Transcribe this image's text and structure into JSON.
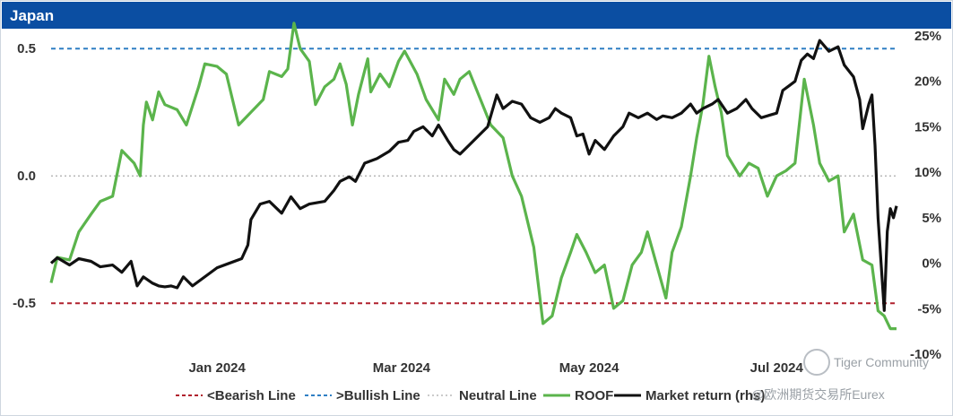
{
  "header": {
    "title": "Japan"
  },
  "colors": {
    "header_bg": "#0b4ea2",
    "roof": "#5bb44c",
    "market": "#111111",
    "bearish": "#b0202d",
    "bullish": "#2f7fc4",
    "neutral": "#b8b8b8"
  },
  "watermark": {
    "community": "Tiger Community",
    "source": "@欧洲期货交易所Eurex"
  },
  "chart_data": {
    "type": "line",
    "x_tick_labels": [
      "Jan 2024",
      "Mar 2024",
      "May 2024",
      "Jul 2024"
    ],
    "x_tick_dates": [
      "2024-01-01",
      "2024-03-01",
      "2024-05-01",
      "2024-07-01"
    ],
    "x_range": [
      "2023-11-08",
      "2024-08-09"
    ],
    "y_left": {
      "ticks": [
        "0.5",
        "0.0",
        "-0.5"
      ],
      "values": [
        0.5,
        0.0,
        -0.5
      ],
      "range": [
        -0.7,
        0.55
      ]
    },
    "y_right": {
      "ticks": [
        "25%",
        "20%",
        "15%",
        "10%",
        "5%",
        "0%",
        "-5%",
        "-10%"
      ],
      "values": [
        25,
        20,
        15,
        10,
        5,
        0,
        -5,
        -10
      ],
      "range": [
        -10,
        25
      ]
    },
    "reference_lines": [
      {
        "name": "<Bearish Line",
        "value": -0.5,
        "style": "dashed"
      },
      {
        "name": ">Bullish Line",
        "value": 0.5,
        "style": "dashed"
      },
      {
        "name": "Neutral Line",
        "value": 0.0,
        "style": "dotted"
      }
    ],
    "legend": [
      "<Bearish Line",
      ">Bullish Line",
      "Neutral Line",
      "ROOF",
      "Market return (rhs)"
    ],
    "legend_position": "bottom",
    "series": [
      {
        "name": "ROOF",
        "axis": "left",
        "points": [
          [
            "2023-11-08",
            -0.42
          ],
          [
            "2023-11-10",
            -0.32
          ],
          [
            "2023-11-14",
            -0.33
          ],
          [
            "2023-11-17",
            -0.22
          ],
          [
            "2023-11-21",
            -0.15
          ],
          [
            "2023-11-24",
            -0.1
          ],
          [
            "2023-11-28",
            -0.08
          ],
          [
            "2023-12-01",
            0.1
          ],
          [
            "2023-12-05",
            0.05
          ],
          [
            "2023-12-07",
            0.0
          ],
          [
            "2023-12-08",
            0.2
          ],
          [
            "2023-12-09",
            0.29
          ],
          [
            "2023-12-11",
            0.22
          ],
          [
            "2023-12-13",
            0.33
          ],
          [
            "2023-12-15",
            0.28
          ],
          [
            "2023-12-19",
            0.26
          ],
          [
            "2023-12-22",
            0.2
          ],
          [
            "2023-12-26",
            0.35
          ],
          [
            "2023-12-28",
            0.44
          ],
          [
            "2024-01-01",
            0.43
          ],
          [
            "2024-01-04",
            0.4
          ],
          [
            "2024-01-08",
            0.2
          ],
          [
            "2024-01-12",
            0.25
          ],
          [
            "2024-01-16",
            0.3
          ],
          [
            "2024-01-18",
            0.41
          ],
          [
            "2024-01-22",
            0.39
          ],
          [
            "2024-01-24",
            0.42
          ],
          [
            "2024-01-26",
            0.6
          ],
          [
            "2024-01-28",
            0.5
          ],
          [
            "2024-01-31",
            0.45
          ],
          [
            "2024-02-02",
            0.28
          ],
          [
            "2024-02-05",
            0.35
          ],
          [
            "2024-02-08",
            0.38
          ],
          [
            "2024-02-10",
            0.44
          ],
          [
            "2024-02-12",
            0.36
          ],
          [
            "2024-02-14",
            0.2
          ],
          [
            "2024-02-16",
            0.32
          ],
          [
            "2024-02-19",
            0.46
          ],
          [
            "2024-02-20",
            0.33
          ],
          [
            "2024-02-23",
            0.4
          ],
          [
            "2024-02-26",
            0.35
          ],
          [
            "2024-02-29",
            0.45
          ],
          [
            "2024-03-02",
            0.49
          ],
          [
            "2024-03-06",
            0.4
          ],
          [
            "2024-03-09",
            0.3
          ],
          [
            "2024-03-13",
            0.22
          ],
          [
            "2024-03-15",
            0.38
          ],
          [
            "2024-03-18",
            0.32
          ],
          [
            "2024-03-20",
            0.38
          ],
          [
            "2024-03-23",
            0.41
          ],
          [
            "2024-03-27",
            0.29
          ],
          [
            "2024-03-30",
            0.2
          ],
          [
            "2024-04-03",
            0.15
          ],
          [
            "2024-04-06",
            0.0
          ],
          [
            "2024-04-09",
            -0.08
          ],
          [
            "2024-04-13",
            -0.28
          ],
          [
            "2024-04-16",
            -0.58
          ],
          [
            "2024-04-19",
            -0.55
          ],
          [
            "2024-04-22",
            -0.4
          ],
          [
            "2024-04-25",
            -0.3
          ],
          [
            "2024-04-27",
            -0.23
          ],
          [
            "2024-04-30",
            -0.3
          ],
          [
            "2024-05-03",
            -0.38
          ],
          [
            "2024-05-06",
            -0.35
          ],
          [
            "2024-05-09",
            -0.52
          ],
          [
            "2024-05-12",
            -0.49
          ],
          [
            "2024-05-15",
            -0.35
          ],
          [
            "2024-05-18",
            -0.3
          ],
          [
            "2024-05-20",
            -0.22
          ],
          [
            "2024-05-23",
            -0.35
          ],
          [
            "2024-05-26",
            -0.48
          ],
          [
            "2024-05-28",
            -0.3
          ],
          [
            "2024-05-31",
            -0.2
          ],
          [
            "2024-06-03",
            0.0
          ],
          [
            "2024-06-05",
            0.15
          ],
          [
            "2024-06-07",
            0.28
          ],
          [
            "2024-06-09",
            0.47
          ],
          [
            "2024-06-11",
            0.35
          ],
          [
            "2024-06-13",
            0.25
          ],
          [
            "2024-06-15",
            0.08
          ],
          [
            "2024-06-19",
            0.0
          ],
          [
            "2024-06-22",
            0.05
          ],
          [
            "2024-06-25",
            0.03
          ],
          [
            "2024-06-28",
            -0.08
          ],
          [
            "2024-07-01",
            0.0
          ],
          [
            "2024-07-04",
            0.02
          ],
          [
            "2024-07-07",
            0.05
          ],
          [
            "2024-07-10",
            0.38
          ],
          [
            "2024-07-13",
            0.2
          ],
          [
            "2024-07-15",
            0.05
          ],
          [
            "2024-07-18",
            -0.02
          ],
          [
            "2024-07-21",
            0.0
          ],
          [
            "2024-07-23",
            -0.22
          ],
          [
            "2024-07-26",
            -0.15
          ],
          [
            "2024-07-29",
            -0.33
          ],
          [
            "2024-08-01",
            -0.35
          ],
          [
            "2024-08-03",
            -0.53
          ],
          [
            "2024-08-05",
            -0.55
          ],
          [
            "2024-08-07",
            -0.6
          ],
          [
            "2024-08-09",
            -0.6
          ]
        ]
      },
      {
        "name": "Market return (rhs)",
        "axis": "right",
        "points": [
          [
            "2023-11-08",
            0.0
          ],
          [
            "2023-11-10",
            0.6
          ],
          [
            "2023-11-14",
            -0.2
          ],
          [
            "2023-11-17",
            0.5
          ],
          [
            "2023-11-21",
            0.2
          ],
          [
            "2023-11-24",
            -0.4
          ],
          [
            "2023-11-28",
            -0.2
          ],
          [
            "2023-12-01",
            -1.0
          ],
          [
            "2023-12-04",
            0.2
          ],
          [
            "2023-12-06",
            -2.5
          ],
          [
            "2023-12-08",
            -1.5
          ],
          [
            "2023-12-11",
            -2.2
          ],
          [
            "2023-12-13",
            -2.5
          ],
          [
            "2023-12-15",
            -2.6
          ],
          [
            "2023-12-17",
            -2.5
          ],
          [
            "2023-12-19",
            -2.7
          ],
          [
            "2023-12-21",
            -1.5
          ],
          [
            "2023-12-24",
            -2.5
          ],
          [
            "2024-01-01",
            -0.5
          ],
          [
            "2024-01-09",
            0.5
          ],
          [
            "2024-01-11",
            2.0
          ],
          [
            "2024-01-12",
            4.8
          ],
          [
            "2024-01-15",
            6.5
          ],
          [
            "2024-01-18",
            6.8
          ],
          [
            "2024-01-22",
            5.5
          ],
          [
            "2024-01-25",
            7.3
          ],
          [
            "2024-01-28",
            6.0
          ],
          [
            "2024-01-31",
            6.5
          ],
          [
            "2024-02-05",
            6.8
          ],
          [
            "2024-02-08",
            8.0
          ],
          [
            "2024-02-10",
            9.0
          ],
          [
            "2024-02-13",
            9.5
          ],
          [
            "2024-02-15",
            9.0
          ],
          [
            "2024-02-18",
            11.0
          ],
          [
            "2024-02-22",
            11.5
          ],
          [
            "2024-02-26",
            12.3
          ],
          [
            "2024-02-29",
            13.3
          ],
          [
            "2024-03-03",
            13.5
          ],
          [
            "2024-03-05",
            14.5
          ],
          [
            "2024-03-08",
            15.0
          ],
          [
            "2024-03-11",
            14.0
          ],
          [
            "2024-03-13",
            15.2
          ],
          [
            "2024-03-16",
            13.5
          ],
          [
            "2024-03-18",
            12.5
          ],
          [
            "2024-03-20",
            12.0
          ],
          [
            "2024-03-23",
            13.0
          ],
          [
            "2024-03-26",
            14.0
          ],
          [
            "2024-03-29",
            15.0
          ],
          [
            "2024-04-01",
            18.5
          ],
          [
            "2024-04-03",
            17.0
          ],
          [
            "2024-04-06",
            17.8
          ],
          [
            "2024-04-09",
            17.5
          ],
          [
            "2024-04-12",
            16.0
          ],
          [
            "2024-04-15",
            15.5
          ],
          [
            "2024-04-18",
            16.0
          ],
          [
            "2024-04-20",
            17.0
          ],
          [
            "2024-04-22",
            16.5
          ],
          [
            "2024-04-25",
            16.0
          ],
          [
            "2024-04-27",
            14.0
          ],
          [
            "2024-04-29",
            14.2
          ],
          [
            "2024-05-01",
            12.0
          ],
          [
            "2024-05-03",
            13.5
          ],
          [
            "2024-05-06",
            12.5
          ],
          [
            "2024-05-09",
            14.0
          ],
          [
            "2024-05-12",
            15.0
          ],
          [
            "2024-05-14",
            16.5
          ],
          [
            "2024-05-17",
            16.0
          ],
          [
            "2024-05-20",
            16.5
          ],
          [
            "2024-05-23",
            15.8
          ],
          [
            "2024-05-25",
            16.2
          ],
          [
            "2024-05-28",
            16.0
          ],
          [
            "2024-05-31",
            16.5
          ],
          [
            "2024-06-03",
            17.5
          ],
          [
            "2024-06-05",
            16.5
          ],
          [
            "2024-06-07",
            17.0
          ],
          [
            "2024-06-10",
            17.5
          ],
          [
            "2024-06-12",
            18.0
          ],
          [
            "2024-06-15",
            16.5
          ],
          [
            "2024-06-18",
            17.0
          ],
          [
            "2024-06-21",
            18.0
          ],
          [
            "2024-06-23",
            17.0
          ],
          [
            "2024-06-26",
            16.0
          ],
          [
            "2024-06-29",
            16.3
          ],
          [
            "2024-07-01",
            16.5
          ],
          [
            "2024-07-03",
            19.0
          ],
          [
            "2024-07-05",
            19.5
          ],
          [
            "2024-07-07",
            20.0
          ],
          [
            "2024-07-09",
            22.3
          ],
          [
            "2024-07-11",
            23.0
          ],
          [
            "2024-07-13",
            22.5
          ],
          [
            "2024-07-15",
            24.5
          ],
          [
            "2024-07-18",
            23.3
          ],
          [
            "2024-07-21",
            23.8
          ],
          [
            "2024-07-23",
            21.8
          ],
          [
            "2024-07-26",
            20.5
          ],
          [
            "2024-07-28",
            18.0
          ],
          [
            "2024-07-29",
            14.8
          ],
          [
            "2024-07-31",
            17.5
          ],
          [
            "2024-08-01",
            18.5
          ],
          [
            "2024-08-02",
            13.0
          ],
          [
            "2024-08-03",
            5.0
          ],
          [
            "2024-08-05",
            -5.2
          ],
          [
            "2024-08-06",
            3.5
          ],
          [
            "2024-08-07",
            6.0
          ],
          [
            "2024-08-08",
            5.0
          ],
          [
            "2024-08-09",
            6.3
          ]
        ]
      }
    ]
  }
}
